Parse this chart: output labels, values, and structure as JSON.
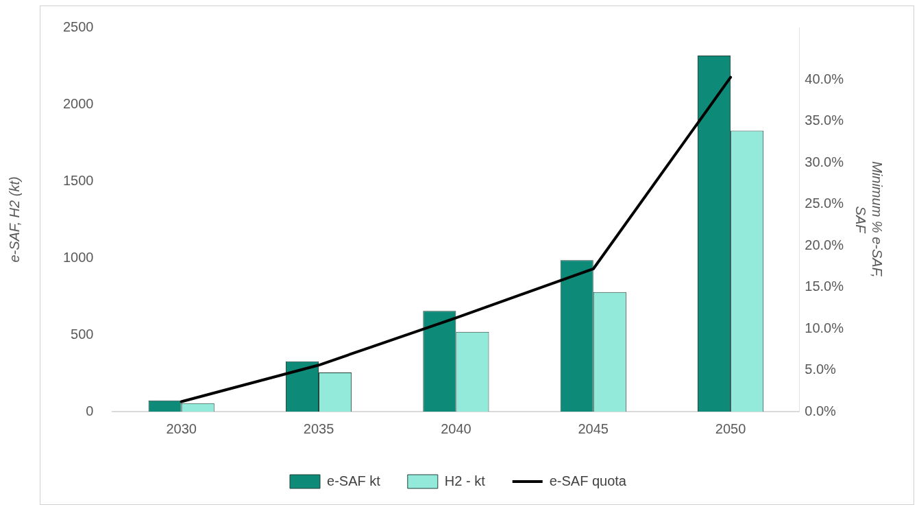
{
  "chart_data": {
    "type": "bar",
    "categories": [
      "2030",
      "2035",
      "2040",
      "2045",
      "2050"
    ],
    "series": [
      {
        "name": "e-SAF kt",
        "color": "#0e8a78",
        "values": [
          72,
          327,
          655,
          986,
          2317
        ]
      },
      {
        "name": "H2 - kt",
        "color": "#93eadb",
        "values": [
          55,
          255,
          519,
          778,
          1828
        ]
      },
      {
        "name": "e-SAF quota",
        "type": "line",
        "axis": "y2",
        "color": "#000000",
        "values": [
          1.2,
          5.6,
          11.3,
          17.2,
          40.3
        ]
      }
    ],
    "ylabel": "e-SAF, H2 (kt)",
    "y2label": "Minimum % e-SAF, SAF",
    "ylim": [
      0,
      2500
    ],
    "yticks": [
      0,
      500,
      1000,
      1500,
      2000,
      2500
    ],
    "y2lim": [
      0,
      46.3
    ],
    "y2ticks": [
      {
        "value": 0,
        "label": "0.0%"
      },
      {
        "value": 5,
        "label": "5.0%"
      },
      {
        "value": 10,
        "label": "10.0%"
      },
      {
        "value": 15,
        "label": "15.0%"
      },
      {
        "value": 20,
        "label": "20.0%"
      },
      {
        "value": 25,
        "label": "25.0%"
      },
      {
        "value": 30,
        "label": "30.0%"
      },
      {
        "value": 35,
        "label": "35.0%"
      },
      {
        "value": 40,
        "label": "40.0%"
      }
    ],
    "legend": "bottom",
    "marker": "none",
    "line_style": "solid"
  }
}
